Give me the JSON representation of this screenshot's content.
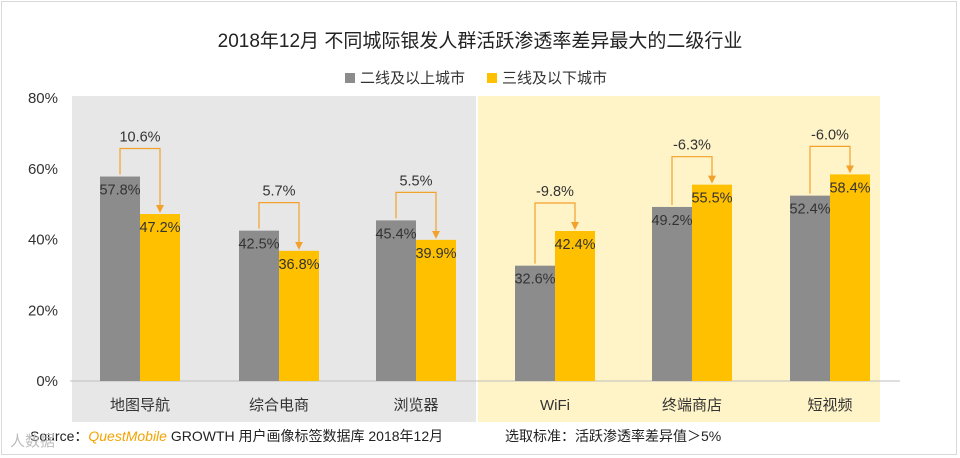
{
  "chart_data": {
    "type": "bar",
    "title": "2018年12月 不同城际银发人群活跃渗透率差异最大的二级行业",
    "categories": [
      "地图导航",
      "综合电商",
      "浏览器",
      "WiFi",
      "终端商店",
      "短视频"
    ],
    "series": [
      {
        "name": "二线及以上城市",
        "values": [
          57.8,
          42.5,
          45.4,
          32.6,
          49.2,
          52.4
        ],
        "labels": [
          "57.8%",
          "42.5%",
          "45.4%",
          "32.6%",
          "49.2%",
          "52.4%"
        ],
        "color": "#8c8c8c"
      },
      {
        "name": "三线及以下城市",
        "values": [
          47.2,
          36.8,
          39.9,
          42.4,
          55.5,
          58.4
        ],
        "labels": [
          "47.2%",
          "36.8%",
          "39.9%",
          "42.4%",
          "55.5%",
          "58.4%"
        ],
        "color": "#ffc000"
      }
    ],
    "differences": [
      "10.6%",
      "5.7%",
      "5.5%",
      "-9.8%",
      "-6.3%",
      "-6.0%"
    ],
    "y_ticks": [
      "0%",
      "20%",
      "40%",
      "60%",
      "80%"
    ],
    "ylim": [
      0,
      80
    ],
    "grid": false,
    "legend": "top-center",
    "highlight_colors": {
      "left_group": "#e7e7e7",
      "right_group": "#fff3c8",
      "arrow": "#f2a12b"
    }
  },
  "footer": {
    "source_prefix": "Source：",
    "source_brand": "QuestMobile",
    "source_rest": " GROWTH 用户画像标签数据库 2018年12月",
    "criteria": "选取标准：活跃渗透率差异值＞5%"
  },
  "watermark": "人数据"
}
